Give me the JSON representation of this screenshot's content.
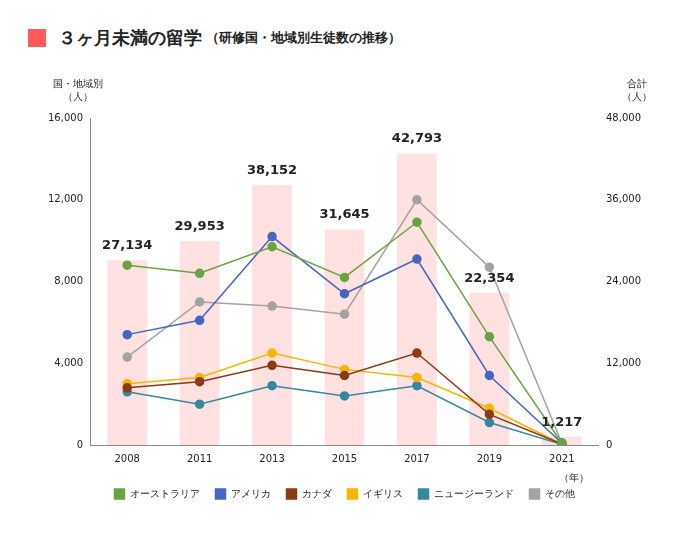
{
  "chart_data": {
    "type": "line",
    "title": "３ヶ月未満の留学",
    "subtitle": "（研修国・地域別生徒数の推移）",
    "title_color": "#ff5a5a",
    "y_label": "国・地域別\n（人）",
    "y2_label": "合計\n（人）",
    "x_label": "（年）",
    "categories": [
      "2008",
      "2011",
      "2013",
      "2015",
      "2017",
      "2019",
      "2021"
    ],
    "ylim": [
      0,
      16000
    ],
    "yticks": [
      0,
      {
        "value": 4000,
        "label": "4,000"
      },
      {
        "value": 8000,
        "label": "8,000"
      },
      {
        "value": 12000,
        "label": "12,000"
      },
      {
        "value": 16000,
        "label": "16,000"
      }
    ],
    "y2lim": [
      0,
      48000
    ],
    "y2ticks": [
      0,
      {
        "value": 12000,
        "label": "12,000"
      },
      {
        "value": 24000,
        "label": "24,000"
      },
      {
        "value": 36000,
        "label": "36,000"
      },
      {
        "value": 48000,
        "label": "48,000"
      }
    ],
    "grid": false,
    "legend": "bottom",
    "series": [
      {
        "type": "bar",
        "axis": "y2",
        "color": "#ffe1e1",
        "data_labels": true,
        "values": [
          27134,
          29953,
          38152,
          31645,
          42793,
          22354,
          1217
        ],
        "value_labels": [
          "27,134",
          "29,953",
          "38,152",
          "31,645",
          "42,793",
          "22,354",
          "1,217"
        ]
      },
      {
        "name": "オーストラリア",
        "type": "line",
        "marker": "circle",
        "color": "#6aa341",
        "values": [
          8800,
          8400,
          9700,
          8200,
          10900,
          5300,
          100
        ]
      },
      {
        "name": "アメリカ",
        "type": "line",
        "marker": "circle",
        "color": "#4566c0",
        "values": [
          5400,
          6100,
          10200,
          7400,
          9100,
          3400,
          100
        ]
      },
      {
        "name": "カナダ",
        "type": "line",
        "marker": "circle",
        "color": "#8b3a12",
        "values": [
          2800,
          3100,
          3900,
          3400,
          4500,
          1500,
          50
        ]
      },
      {
        "name": "イギリス",
        "type": "line",
        "marker": "circle",
        "color": "#f7b500",
        "values": [
          3000,
          3300,
          4500,
          3700,
          3300,
          1800,
          50
        ]
      },
      {
        "name": "ニュージーランド",
        "type": "line",
        "marker": "circle",
        "color": "#35889e",
        "values": [
          2600,
          2000,
          2900,
          2400,
          2900,
          1100,
          30
        ]
      },
      {
        "name": "その他",
        "type": "line",
        "marker": "circle",
        "color": "#a3a3a3",
        "values": [
          4300,
          7000,
          6800,
          6400,
          12000,
          8700,
          100
        ]
      }
    ]
  }
}
